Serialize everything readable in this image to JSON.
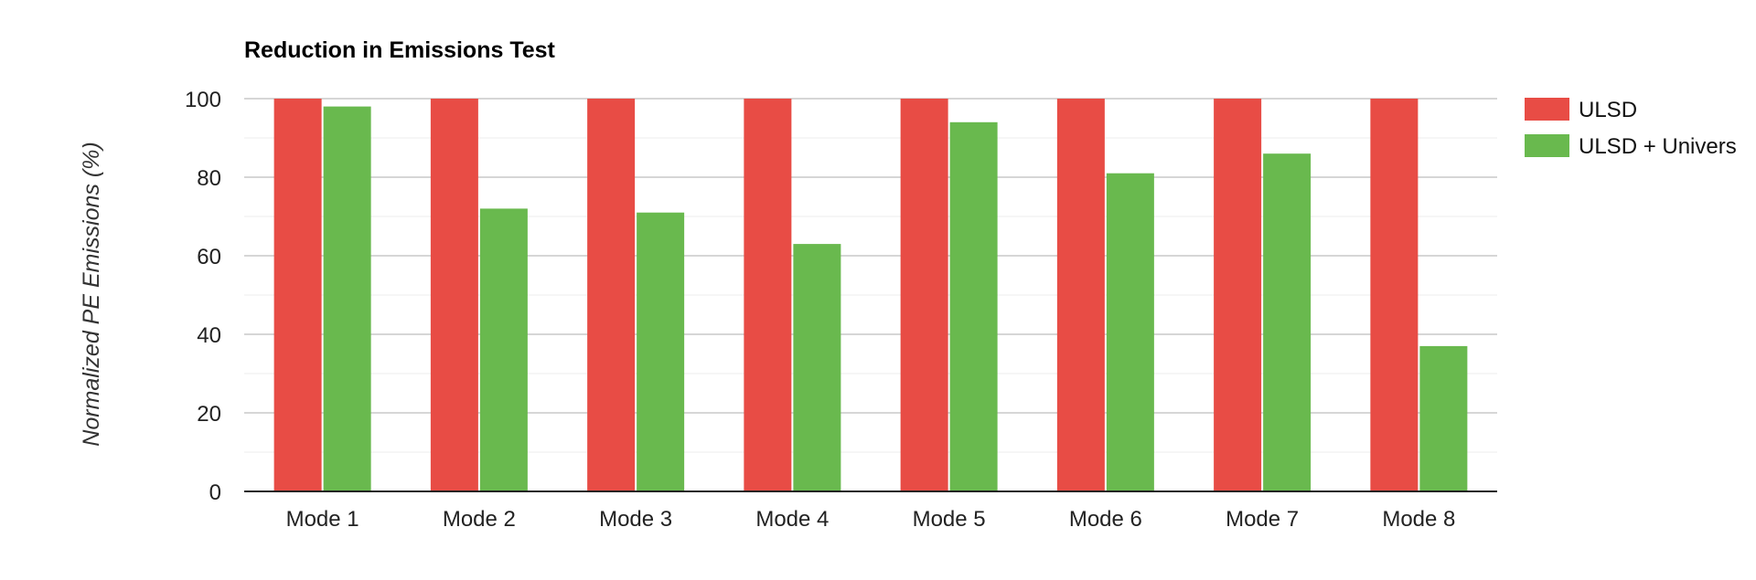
{
  "chart_data": {
    "type": "bar",
    "title": "Reduction in Emissions Test",
    "xlabel": "",
    "ylabel": "Normalized PE Emissions (%)",
    "ylim": [
      0,
      100
    ],
    "yticks": [
      0,
      20,
      40,
      60,
      80,
      100
    ],
    "grid": true,
    "legend_position": "right",
    "categories": [
      "Mode 1",
      "Mode 2",
      "Mode 3",
      "Mode 4",
      "Mode 5",
      "Mode 6",
      "Mode 7",
      "Mode 8"
    ],
    "series": [
      {
        "name": "ULSD",
        "color": "#e84c45",
        "values": [
          100,
          100,
          100,
          100,
          100,
          100,
          100,
          100
        ]
      },
      {
        "name": "ULSD + Univers",
        "color": "#69b94e",
        "values": [
          98,
          72,
          71,
          63,
          94,
          81,
          86,
          37
        ]
      }
    ]
  }
}
